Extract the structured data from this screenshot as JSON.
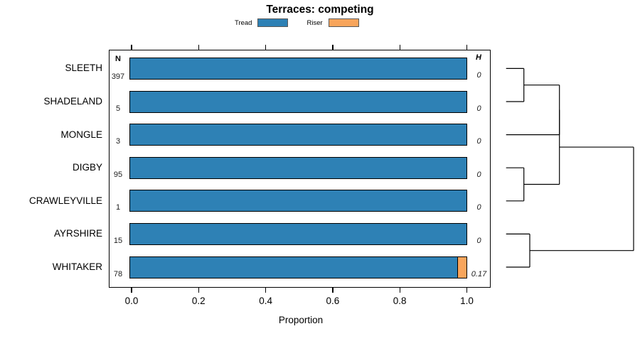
{
  "title": "Terraces: competing",
  "legend": [
    {
      "label": "Tread",
      "color": "#2E81B5"
    },
    {
      "label": "Riser",
      "color": "#F8A55C"
    }
  ],
  "chart_data": {
    "type": "bar",
    "orientation": "horizontal",
    "stacked": true,
    "title": "Terraces: competing",
    "xlabel": "Proportion",
    "xlim": [
      0,
      1.07
    ],
    "grid": false,
    "legend_position": "top",
    "x_ticks": {
      "values": [
        0.0,
        0.2,
        0.4,
        0.6,
        0.8,
        1.0
      ],
      "labels": [
        "0.0",
        "0.2",
        "0.4",
        "0.6",
        "0.8",
        "1.0"
      ]
    },
    "categories": [
      "SLEETH",
      "SHADELAND",
      "MONGLE",
      "DIGBY",
      "CRAWLEYVILLE",
      "AYRSHIRE",
      "WHITAKER"
    ],
    "series": [
      {
        "name": "Tread",
        "color": "#2E81B5",
        "values": [
          1.0,
          1.0,
          1.0,
          1.0,
          1.0,
          1.0,
          0.974
        ]
      },
      {
        "name": "Riser",
        "color": "#F8A55C",
        "values": [
          0.0,
          0.0,
          0.0,
          0.0,
          0.0,
          0.0,
          0.026
        ]
      }
    ],
    "n_header": "N",
    "n_values": [
      397,
      5,
      3,
      95,
      1,
      15,
      78
    ],
    "h_header": "H",
    "h_values": [
      "0",
      "0",
      "0",
      "0",
      "0",
      "0",
      "0.17"
    ],
    "dendrogram": {
      "merges": [
        {
          "children": [
            {
              "leaf": 0
            },
            {
              "leaf": 1
            }
          ],
          "x": 736.7
        },
        {
          "children": [
            {
              "merge": 0
            },
            {
              "leaf": 2
            }
          ],
          "x": 786.7
        },
        {
          "children": [
            {
              "leaf": 3
            },
            {
              "leaf": 4
            }
          ],
          "x": 736.7
        },
        {
          "children": [
            {
              "merge": 1
            },
            {
              "merge": 2
            }
          ],
          "x": 786.7
        },
        {
          "children": [
            {
              "leaf": 5
            },
            {
              "leaf": 6
            }
          ],
          "x": 745
        },
        {
          "children": [
            {
              "merge": 3
            },
            {
              "merge": 4
            }
          ],
          "x": 891
        }
      ]
    }
  }
}
